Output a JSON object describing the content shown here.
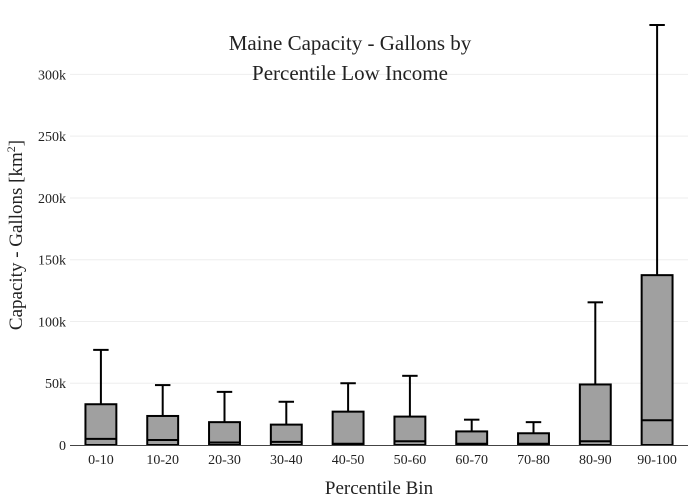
{
  "chart_data": {
    "type": "box",
    "title_lines": [
      "Maine Capacity - Gallons by",
      "Percentile Low Income"
    ],
    "xlabel": "Percentile Bin",
    "ylabel_main": "Capacity - Gallons  [km",
    "ylabel_sup": "2",
    "ylabel_end": "]",
    "ylim": [
      0,
      340000
    ],
    "yticks": [
      0,
      50000,
      100000,
      150000,
      200000,
      250000,
      300000
    ],
    "ytick_labels": [
      "0",
      "50k",
      "100k",
      "150k",
      "200k",
      "250k",
      "300k"
    ],
    "grid": true,
    "categories": [
      "0-10",
      "10-20",
      "20-30",
      "30-40",
      "40-50",
      "50-60",
      "60-70",
      "70-80",
      "80-90",
      "90-100"
    ],
    "boxes": [
      {
        "min": 0,
        "q1": 0,
        "median": 5000,
        "q3": 33000,
        "max": 77000
      },
      {
        "min": 0,
        "q1": 0,
        "median": 4000,
        "q3": 23500,
        "max": 48500
      },
      {
        "min": 0,
        "q1": 0,
        "median": 2000,
        "q3": 18500,
        "max": 43000
      },
      {
        "min": 0,
        "q1": 0,
        "median": 2500,
        "q3": 16500,
        "max": 35000
      },
      {
        "min": 0,
        "q1": 0,
        "median": 1000,
        "q3": 27000,
        "max": 50000
      },
      {
        "min": 0,
        "q1": 0,
        "median": 3000,
        "q3": 23000,
        "max": 56000
      },
      {
        "min": 0,
        "q1": 0,
        "median": 1000,
        "q3": 11000,
        "max": 20500
      },
      {
        "min": 0,
        "q1": 0,
        "median": 1000,
        "q3": 9500,
        "max": 18500
      },
      {
        "min": 0,
        "q1": 0,
        "median": 3000,
        "q3": 49000,
        "max": 115500
      },
      {
        "min": 0,
        "q1": 0,
        "median": 20000,
        "q3": 137500,
        "max": 340000
      }
    ],
    "box_color": "#a0a0a0",
    "line_color": "#000000"
  }
}
